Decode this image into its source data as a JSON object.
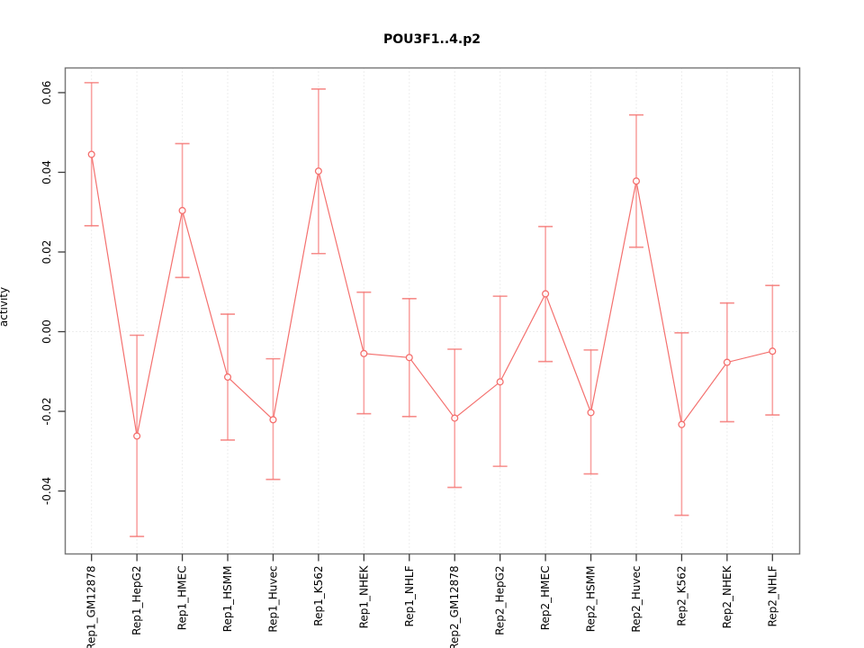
{
  "window": {
    "background": "#ffffff"
  },
  "chart_data": {
    "type": "line",
    "title": "POU3F1..4.p2",
    "xlabel": "",
    "ylabel": "activity",
    "categories": [
      "Rep1_GM12878",
      "Rep1_HepG2",
      "Rep1_HMEC",
      "Rep1_HSMM",
      "Rep1_Huvec",
      "Rep1_K562",
      "Rep1_NHEK",
      "Rep1_NHLF",
      "Rep2_GM12878",
      "Rep2_HepG2",
      "Rep2_HMEC",
      "Rep2_HSMM",
      "Rep2_Huvec",
      "Rep2_K562",
      "Rep2_NHEK",
      "Rep2_NHLF"
    ],
    "series": [
      {
        "name": "activity",
        "values": [
          0.0445,
          -0.0262,
          0.0304,
          -0.0114,
          -0.0221,
          0.0403,
          -0.0055,
          -0.0065,
          -0.0217,
          -0.0126,
          0.0095,
          -0.0203,
          0.0378,
          -0.0233,
          -0.0077,
          -0.0049
        ],
        "upper": [
          0.0625,
          -0.0009,
          0.0472,
          0.0044,
          -0.0068,
          0.0609,
          0.0099,
          0.0083,
          -0.0044,
          0.0089,
          0.0264,
          -0.0046,
          0.0544,
          -0.0003,
          0.0072,
          0.0116
        ],
        "lower": [
          0.0266,
          -0.0514,
          0.0136,
          -0.0272,
          -0.0371,
          0.0196,
          -0.0206,
          -0.0213,
          -0.0391,
          -0.0338,
          -0.0075,
          -0.0357,
          0.0212,
          -0.0461,
          -0.0226,
          -0.0209
        ]
      }
    ],
    "yticks": [
      -0.04,
      -0.02,
      0.0,
      0.02,
      0.04,
      0.06
    ],
    "ylim": [
      -0.0558,
      0.0662
    ],
    "grid": {
      "vertical_gridlines": true,
      "zero_line": true,
      "gridline_style": "dotted"
    },
    "legend_position": "none",
    "marker": "open-circle",
    "colors": {
      "series_line": "#f4706e",
      "marker": "#f4706e",
      "error_bar": "#f9a3a2",
      "error_cap": "#f4706e",
      "gridline": "#dcdcdc",
      "plot_border": "#7a7a7a",
      "tick": "#3c3c3c",
      "text": "#000000",
      "background": "#ffffff"
    }
  }
}
